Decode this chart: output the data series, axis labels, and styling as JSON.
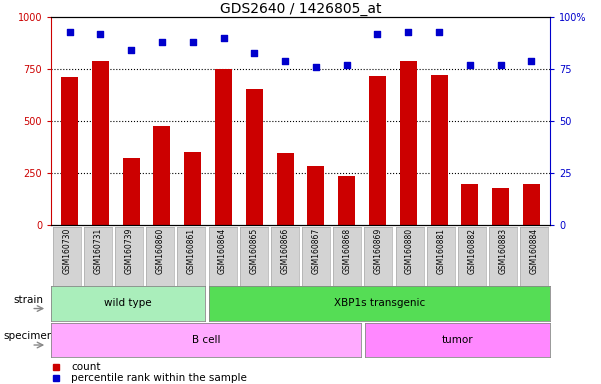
{
  "title": "GDS2640 / 1426805_at",
  "samples": [
    "GSM160730",
    "GSM160731",
    "GSM160739",
    "GSM160860",
    "GSM160861",
    "GSM160864",
    "GSM160865",
    "GSM160866",
    "GSM160867",
    "GSM160868",
    "GSM160869",
    "GSM160880",
    "GSM160881",
    "GSM160882",
    "GSM160883",
    "GSM160884"
  ],
  "counts": [
    710,
    790,
    320,
    475,
    350,
    750,
    655,
    345,
    285,
    235,
    715,
    790,
    720,
    195,
    175,
    195
  ],
  "percentiles": [
    93,
    92,
    84,
    88,
    88,
    90,
    83,
    79,
    76,
    77,
    92,
    93,
    93,
    77,
    77,
    79
  ],
  "bar_color": "#cc0000",
  "dot_color": "#0000cc",
  "ylim_left": [
    0,
    1000
  ],
  "ylim_right": [
    0,
    100
  ],
  "yticks_left": [
    0,
    250,
    500,
    750,
    1000
  ],
  "yticks_right": [
    0,
    25,
    50,
    75,
    100
  ],
  "ytick_right_labels": [
    "0",
    "25",
    "50",
    "75",
    "100%"
  ],
  "grid_values": [
    250,
    500,
    750
  ],
  "wt_cols": 5,
  "xbp_cols": 11,
  "bcell_cols": 10,
  "tumor_cols": 6,
  "strain_wt_color": "#aaeebb",
  "strain_xbp_color": "#55dd55",
  "specimen_bcell_color": "#ffaaff",
  "specimen_tumor_color": "#ff88ff",
  "title_fontsize": 10,
  "axis_color_left": "#cc0000",
  "axis_color_right": "#0000cc",
  "tick_box_color": "#d3d3d3",
  "tick_box_edge_color": "#aaaaaa",
  "background_color": "#ffffff"
}
